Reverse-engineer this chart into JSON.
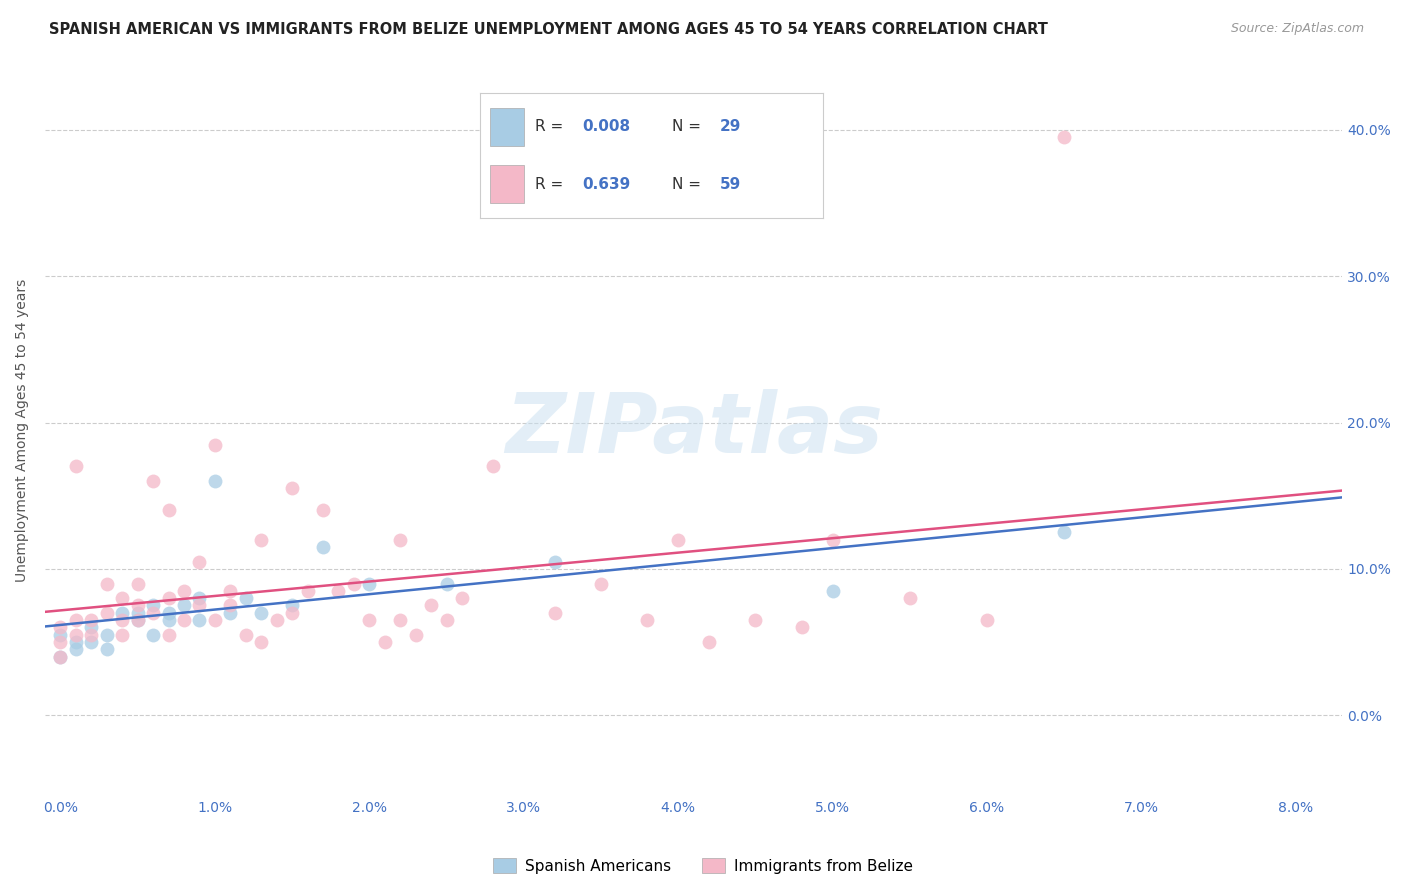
{
  "title": "SPANISH AMERICAN VS IMMIGRANTS FROM BELIZE UNEMPLOYMENT AMONG AGES 45 TO 54 YEARS CORRELATION CHART",
  "source": "Source: ZipAtlas.com",
  "ylabel": "Unemployment Among Ages 45 to 54 years",
  "x_ticks": [
    0.0,
    0.01,
    0.02,
    0.03,
    0.04,
    0.05,
    0.06,
    0.07,
    0.08
  ],
  "y_ticks": [
    0.0,
    0.1,
    0.2,
    0.3,
    0.4
  ],
  "xlim": [
    -0.001,
    0.083
  ],
  "ylim": [
    -0.055,
    0.445
  ],
  "blue_color": "#a8cce4",
  "pink_color": "#f4b8c8",
  "blue_line_color": "#4472c4",
  "pink_line_color": "#e05080",
  "legend_R_blue": "0.008",
  "legend_N_blue": "29",
  "legend_R_pink": "0.639",
  "legend_N_pink": "59",
  "legend_label_blue": "Spanish Americans",
  "legend_label_pink": "Immigrants from Belize",
  "watermark": "ZIPatlas",
  "blue_points_x": [
    0.0,
    0.0,
    0.001,
    0.001,
    0.002,
    0.002,
    0.003,
    0.003,
    0.004,
    0.005,
    0.005,
    0.006,
    0.006,
    0.007,
    0.007,
    0.008,
    0.009,
    0.009,
    0.01,
    0.011,
    0.012,
    0.013,
    0.015,
    0.017,
    0.02,
    0.025,
    0.032,
    0.05,
    0.065
  ],
  "blue_points_y": [
    0.055,
    0.04,
    0.05,
    0.045,
    0.06,
    0.05,
    0.055,
    0.045,
    0.07,
    0.065,
    0.07,
    0.055,
    0.075,
    0.065,
    0.07,
    0.075,
    0.065,
    0.08,
    0.16,
    0.07,
    0.08,
    0.07,
    0.075,
    0.115,
    0.09,
    0.09,
    0.105,
    0.085,
    0.125
  ],
  "pink_points_x": [
    0.0,
    0.0,
    0.0,
    0.001,
    0.001,
    0.001,
    0.002,
    0.002,
    0.003,
    0.003,
    0.004,
    0.004,
    0.004,
    0.005,
    0.005,
    0.005,
    0.006,
    0.006,
    0.007,
    0.007,
    0.007,
    0.008,
    0.008,
    0.009,
    0.009,
    0.01,
    0.01,
    0.011,
    0.011,
    0.012,
    0.013,
    0.013,
    0.014,
    0.015,
    0.015,
    0.016,
    0.017,
    0.018,
    0.019,
    0.02,
    0.021,
    0.022,
    0.022,
    0.023,
    0.024,
    0.025,
    0.026,
    0.028,
    0.032,
    0.035,
    0.038,
    0.04,
    0.042,
    0.045,
    0.048,
    0.05,
    0.055,
    0.06,
    0.065
  ],
  "pink_points_y": [
    0.04,
    0.05,
    0.06,
    0.055,
    0.065,
    0.17,
    0.055,
    0.065,
    0.07,
    0.09,
    0.055,
    0.065,
    0.08,
    0.065,
    0.075,
    0.09,
    0.07,
    0.16,
    0.055,
    0.08,
    0.14,
    0.065,
    0.085,
    0.075,
    0.105,
    0.065,
    0.185,
    0.075,
    0.085,
    0.055,
    0.05,
    0.12,
    0.065,
    0.07,
    0.155,
    0.085,
    0.14,
    0.085,
    0.09,
    0.065,
    0.05,
    0.065,
    0.12,
    0.055,
    0.075,
    0.065,
    0.08,
    0.17,
    0.07,
    0.09,
    0.065,
    0.12,
    0.05,
    0.065,
    0.06,
    0.12,
    0.08,
    0.065,
    0.395
  ]
}
